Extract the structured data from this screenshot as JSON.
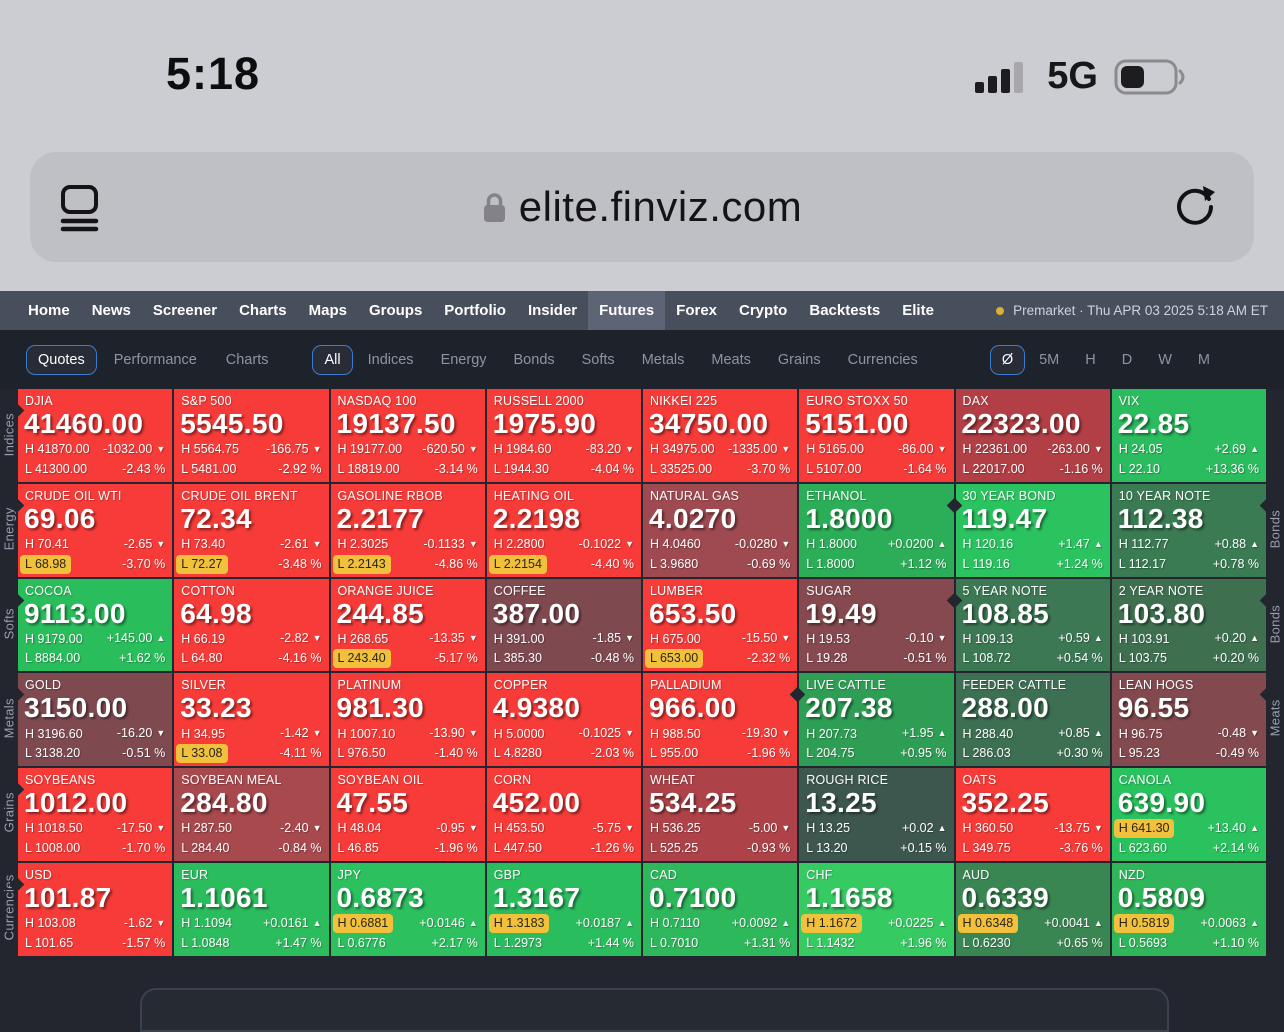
{
  "status_bar": {
    "time": "5:18",
    "network": "5G"
  },
  "url_bar": {
    "domain": "elite.finviz.com"
  },
  "nav": {
    "items": [
      {
        "label": "Home"
      },
      {
        "label": "News"
      },
      {
        "label": "Screener"
      },
      {
        "label": "Charts"
      },
      {
        "label": "Maps"
      },
      {
        "label": "Groups"
      },
      {
        "label": "Portfolio"
      },
      {
        "label": "Insider"
      },
      {
        "label": "Futures",
        "active": true
      },
      {
        "label": "Forex"
      },
      {
        "label": "Crypto"
      },
      {
        "label": "Backtests"
      },
      {
        "label": "Elite"
      }
    ],
    "premarket": "Premarket · Thu APR 03 2025 5:18 AM ET"
  },
  "toolbar": {
    "views": [
      {
        "label": "Quotes",
        "active": true
      },
      {
        "label": "Performance"
      },
      {
        "label": "Charts"
      }
    ],
    "filters": [
      {
        "label": "All",
        "active": true
      },
      {
        "label": "Indices"
      },
      {
        "label": "Energy"
      },
      {
        "label": "Bonds"
      },
      {
        "label": "Softs"
      },
      {
        "label": "Metals"
      },
      {
        "label": "Meats"
      },
      {
        "label": "Grains"
      },
      {
        "label": "Currencies"
      }
    ],
    "timeframes": [
      {
        "label": "Ø",
        "active": true
      },
      {
        "label": "5M"
      },
      {
        "label": "H"
      },
      {
        "label": "D"
      },
      {
        "label": "W"
      },
      {
        "label": "M"
      }
    ]
  },
  "colors": {
    "red_full": "#f73b38",
    "green_full": "#2abc5e",
    "highlight_yellow": "#f2c13b",
    "nav_bg": "#474e5c",
    "toolbar_bg": "#1e222b",
    "page_bg": "#23262e",
    "accent_blue": "#3b7cd2",
    "premarket_dot": "#ddad39"
  },
  "grid": {
    "labels": {
      "high_prefix": "H",
      "low_prefix": "L"
    },
    "left_labels": [
      {
        "row": 1,
        "label": "Indices"
      },
      {
        "row": 2,
        "label": "Energy"
      },
      {
        "row": 3,
        "label": "Softs"
      },
      {
        "row": 4,
        "label": "Metals"
      },
      {
        "row": 5,
        "label": "Grains"
      },
      {
        "row": 6,
        "label": "Currencies"
      }
    ],
    "right_labels": [
      {
        "row": 2,
        "label": "Bonds"
      },
      {
        "row": 3,
        "label": "Bonds"
      },
      {
        "row": 4,
        "label": "Meats"
      }
    ],
    "rows": [
      {
        "tiles": [
          {
            "name": "DJIA",
            "price": "41460.00",
            "high": "41870.00",
            "high_chg": "-1032.00",
            "low": "41300.00",
            "low_pct": "-2.43 %",
            "dir": "down",
            "bg": "#f73b38"
          },
          {
            "name": "S&P 500",
            "price": "5545.50",
            "high": "5564.75",
            "high_chg": "-166.75",
            "low": "5481.00",
            "low_pct": "-2.92 %",
            "dir": "down",
            "bg": "#f73b38"
          },
          {
            "name": "NASDAQ 100",
            "price": "19137.50",
            "high": "19177.00",
            "high_chg": "-620.50",
            "low": "18819.00",
            "low_pct": "-3.14 %",
            "dir": "down",
            "bg": "#f73b38"
          },
          {
            "name": "RUSSELL 2000",
            "price": "1975.90",
            "high": "1984.60",
            "high_chg": "-83.20",
            "low": "1944.30",
            "low_pct": "-4.04 %",
            "dir": "down",
            "bg": "#f73b38"
          },
          {
            "name": "NIKKEI 225",
            "price": "34750.00",
            "high": "34975.00",
            "high_chg": "-1335.00",
            "low": "33525.00",
            "low_pct": "-3.70 %",
            "dir": "down",
            "bg": "#f73b38"
          },
          {
            "name": "EURO STOXX 50",
            "price": "5151.00",
            "high": "5165.00",
            "high_chg": "-86.00",
            "low": "5107.00",
            "low_pct": "-1.64 %",
            "dir": "down",
            "bg": "#f73b38"
          },
          {
            "name": "DAX",
            "price": "22323.00",
            "high": "22361.00",
            "high_chg": "-263.00",
            "low": "22017.00",
            "low_pct": "-1.16 %",
            "dir": "down",
            "bg": "#b23f45"
          },
          {
            "name": "VIX",
            "price": "22.85",
            "high": "24.05",
            "high_chg": "+2.69",
            "low": "22.10",
            "low_pct": "+13.36 %",
            "dir": "up",
            "bg": "#2abc5e"
          }
        ]
      },
      {
        "tiles": [
          {
            "name": "CRUDE OIL WTI",
            "price": "69.06",
            "high": "70.41",
            "high_chg": "-2.65",
            "low": "68.98",
            "low_pct": "-3.70 %",
            "dir": "down",
            "bg": "#f73b38",
            "hl": "low"
          },
          {
            "name": "CRUDE OIL BRENT",
            "price": "72.34",
            "high": "73.40",
            "high_chg": "-2.61",
            "low": "72.27",
            "low_pct": "-3.48 %",
            "dir": "down",
            "bg": "#f73b38",
            "hl": "low"
          },
          {
            "name": "GASOLINE RBOB",
            "price": "2.2177",
            "high": "2.3025",
            "high_chg": "-0.1133",
            "low": "2.2143",
            "low_pct": "-4.86 %",
            "dir": "down",
            "bg": "#f73b38",
            "hl": "low"
          },
          {
            "name": "HEATING OIL",
            "price": "2.2198",
            "high": "2.2800",
            "high_chg": "-0.1022",
            "low": "2.2154",
            "low_pct": "-4.40 %",
            "dir": "down",
            "bg": "#f73b38",
            "hl": "low"
          },
          {
            "name": "NATURAL GAS",
            "price": "4.0270",
            "high": "4.0460",
            "high_chg": "-0.0280",
            "low": "3.9680",
            "low_pct": "-0.69 %",
            "dir": "down",
            "bg": "#9f4a51"
          },
          {
            "name": "ETHANOL",
            "price": "1.8000",
            "high": "1.8000",
            "high_chg": "+0.0200",
            "low": "1.8000",
            "low_pct": "+1.12 %",
            "dir": "up",
            "bg": "#2cae58"
          },
          {
            "name": "30 YEAR BOND",
            "price": "119.47",
            "high": "120.16",
            "high_chg": "+1.47",
            "low": "119.16",
            "low_pct": "+1.24 %",
            "dir": "up",
            "bg": "#2bc260",
            "boundary": true
          },
          {
            "name": "10 YEAR NOTE",
            "price": "112.38",
            "high": "112.77",
            "high_chg": "+0.88",
            "low": "112.17",
            "low_pct": "+0.78 %",
            "dir": "up",
            "bg": "#3a7b53"
          }
        ]
      },
      {
        "tiles": [
          {
            "name": "COCOA",
            "price": "9113.00",
            "high": "9179.00",
            "high_chg": "+145.00",
            "low": "8884.00",
            "low_pct": "+1.62 %",
            "dir": "up",
            "bg": "#29bd5c"
          },
          {
            "name": "COTTON",
            "price": "64.98",
            "high": "66.19",
            "high_chg": "-2.82",
            "low": "64.80",
            "low_pct": "-4.16 %",
            "dir": "down",
            "bg": "#f73b38"
          },
          {
            "name": "ORANGE JUICE",
            "price": "244.85",
            "high": "268.65",
            "high_chg": "-13.35",
            "low": "243.40",
            "low_pct": "-5.17 %",
            "dir": "down",
            "bg": "#f73b38",
            "hl": "low"
          },
          {
            "name": "COFFEE",
            "price": "387.00",
            "high": "391.00",
            "high_chg": "-1.85",
            "low": "385.30",
            "low_pct": "-0.48 %",
            "dir": "down",
            "bg": "#7f4950"
          },
          {
            "name": "LUMBER",
            "price": "653.50",
            "high": "675.00",
            "high_chg": "-15.50",
            "low": "653.00",
            "low_pct": "-2.32 %",
            "dir": "down",
            "bg": "#f73b38",
            "hl": "low"
          },
          {
            "name": "SUGAR",
            "price": "19.49",
            "high": "19.53",
            "high_chg": "-0.10",
            "low": "19.28",
            "low_pct": "-0.51 %",
            "dir": "down",
            "bg": "#85494f"
          },
          {
            "name": "5 YEAR NOTE",
            "price": "108.85",
            "high": "109.13",
            "high_chg": "+0.59",
            "low": "108.72",
            "low_pct": "+0.54 %",
            "dir": "up",
            "bg": "#3c7854",
            "boundary": true
          },
          {
            "name": "2 YEAR NOTE",
            "price": "103.80",
            "high": "103.91",
            "high_chg": "+0.20",
            "low": "103.75",
            "low_pct": "+0.20 %",
            "dir": "up",
            "bg": "#3e7050"
          }
        ]
      },
      {
        "tiles": [
          {
            "name": "GOLD",
            "price": "3150.00",
            "high": "3196.60",
            "high_chg": "-16.20",
            "low": "3138.20",
            "low_pct": "-0.51 %",
            "dir": "down",
            "bg": "#7e4a50"
          },
          {
            "name": "SILVER",
            "price": "33.23",
            "high": "34.95",
            "high_chg": "-1.42",
            "low": "33.08",
            "low_pct": "-4.11 %",
            "dir": "down",
            "bg": "#f73b38",
            "hl": "low"
          },
          {
            "name": "PLATINUM",
            "price": "981.30",
            "high": "1007.10",
            "high_chg": "-13.90",
            "low": "976.50",
            "low_pct": "-1.40 %",
            "dir": "down",
            "bg": "#f73b38"
          },
          {
            "name": "COPPER",
            "price": "4.9380",
            "high": "5.0000",
            "high_chg": "-0.1025",
            "low": "4.8280",
            "low_pct": "-2.03 %",
            "dir": "down",
            "bg": "#f73b38"
          },
          {
            "name": "PALLADIUM",
            "price": "966.00",
            "high": "988.50",
            "high_chg": "-19.30",
            "low": "955.00",
            "low_pct": "-1.96 %",
            "dir": "down",
            "bg": "#f73b38"
          },
          {
            "name": "LIVE CATTLE",
            "price": "207.38",
            "high": "207.73",
            "high_chg": "+1.95",
            "low": "204.75",
            "low_pct": "+0.95 %",
            "dir": "up",
            "bg": "#2f9e55",
            "boundary": true
          },
          {
            "name": "FEEDER CATTLE",
            "price": "288.00",
            "high": "288.40",
            "high_chg": "+0.85",
            "low": "286.03",
            "low_pct": "+0.30 %",
            "dir": "up",
            "bg": "#3d6f52"
          },
          {
            "name": "LEAN HOGS",
            "price": "96.55",
            "high": "96.75",
            "high_chg": "-0.48",
            "low": "95.23",
            "low_pct": "-0.49 %",
            "dir": "down",
            "bg": "#82494f"
          }
        ]
      },
      {
        "tiles": [
          {
            "name": "SOYBEANS",
            "price": "1012.00",
            "high": "1018.50",
            "high_chg": "-17.50",
            "low": "1008.00",
            "low_pct": "-1.70 %",
            "dir": "down",
            "bg": "#f73b38"
          },
          {
            "name": "SOYBEAN MEAL",
            "price": "284.80",
            "high": "287.50",
            "high_chg": "-2.40",
            "low": "284.40",
            "low_pct": "-0.84 %",
            "dir": "down",
            "bg": "#a8494d"
          },
          {
            "name": "SOYBEAN OIL",
            "price": "47.55",
            "high": "48.04",
            "high_chg": "-0.95",
            "low": "46.85",
            "low_pct": "-1.96 %",
            "dir": "down",
            "bg": "#f73b38"
          },
          {
            "name": "CORN",
            "price": "452.00",
            "high": "453.50",
            "high_chg": "-5.75",
            "low": "447.50",
            "low_pct": "-1.26 %",
            "dir": "down",
            "bg": "#f73b38"
          },
          {
            "name": "WHEAT",
            "price": "534.25",
            "high": "536.25",
            "high_chg": "-5.00",
            "low": "525.25",
            "low_pct": "-0.93 %",
            "dir": "down",
            "bg": "#ad4348"
          },
          {
            "name": "ROUGH RICE",
            "price": "13.25",
            "high": "13.25",
            "high_chg": "+0.02",
            "low": "13.20",
            "low_pct": "+0.15 %",
            "dir": "up",
            "bg": "#3d574e"
          },
          {
            "name": "OATS",
            "price": "352.25",
            "high": "360.50",
            "high_chg": "-13.75",
            "low": "349.75",
            "low_pct": "-3.76 %",
            "dir": "down",
            "bg": "#f73b38"
          },
          {
            "name": "CANOLA",
            "price": "639.90",
            "high": "641.30",
            "high_chg": "+13.40",
            "low": "623.60",
            "low_pct": "+2.14 %",
            "dir": "up",
            "bg": "#29c25e",
            "hl": "high"
          }
        ]
      },
      {
        "tiles": [
          {
            "name": "USD",
            "price": "101.87",
            "high": "103.08",
            "high_chg": "-1.62",
            "low": "101.65",
            "low_pct": "-1.57 %",
            "dir": "down",
            "bg": "#f73b38"
          },
          {
            "name": "EUR",
            "price": "1.1061",
            "high": "1.1094",
            "high_chg": "+0.0161",
            "low": "1.0848",
            "low_pct": "+1.47 %",
            "dir": "up",
            "bg": "#2bbd5d"
          },
          {
            "name": "JPY",
            "price": "0.6873",
            "high": "0.6881",
            "high_chg": "+0.0146",
            "low": "0.6776",
            "low_pct": "+2.17 %",
            "dir": "up",
            "bg": "#2cc05f",
            "hl": "high"
          },
          {
            "name": "GBP",
            "price": "1.3167",
            "high": "1.3183",
            "high_chg": "+0.0187",
            "low": "1.2973",
            "low_pct": "+1.44 %",
            "dir": "up",
            "bg": "#2abd5e",
            "hl": "high"
          },
          {
            "name": "CAD",
            "price": "0.7100",
            "high": "0.7110",
            "high_chg": "+0.0092",
            "low": "0.7010",
            "low_pct": "+1.31 %",
            "dir": "up",
            "bg": "#2eb85c"
          },
          {
            "name": "CHF",
            "price": "1.1658",
            "high": "1.1672",
            "high_chg": "+0.0225",
            "low": "1.1432",
            "low_pct": "+1.96 %",
            "dir": "up",
            "bg": "#36ca63",
            "hl": "high"
          },
          {
            "name": "AUD",
            "price": "0.6339",
            "high": "0.6348",
            "high_chg": "+0.0041",
            "low": "0.6230",
            "low_pct": "+0.65 %",
            "dir": "up",
            "bg": "#3a8652",
            "hl": "high"
          },
          {
            "name": "NZD",
            "price": "0.5809",
            "high": "0.5819",
            "high_chg": "+0.0063",
            "low": "0.5693",
            "low_pct": "+1.10 %",
            "dir": "up",
            "bg": "#30b65a",
            "hl": "high"
          }
        ]
      }
    ]
  }
}
